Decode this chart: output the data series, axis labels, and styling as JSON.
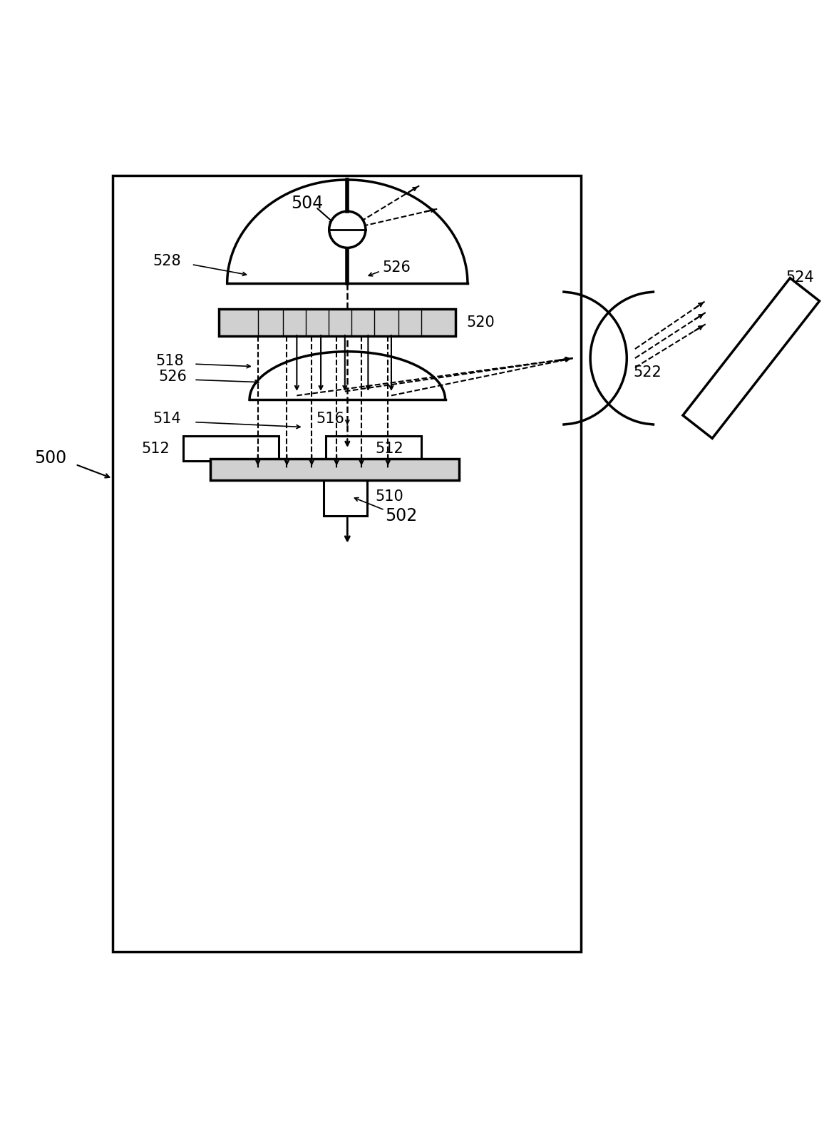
{
  "bg_color": "#ffffff",
  "line_color": "#000000",
  "lw": 2.0
}
